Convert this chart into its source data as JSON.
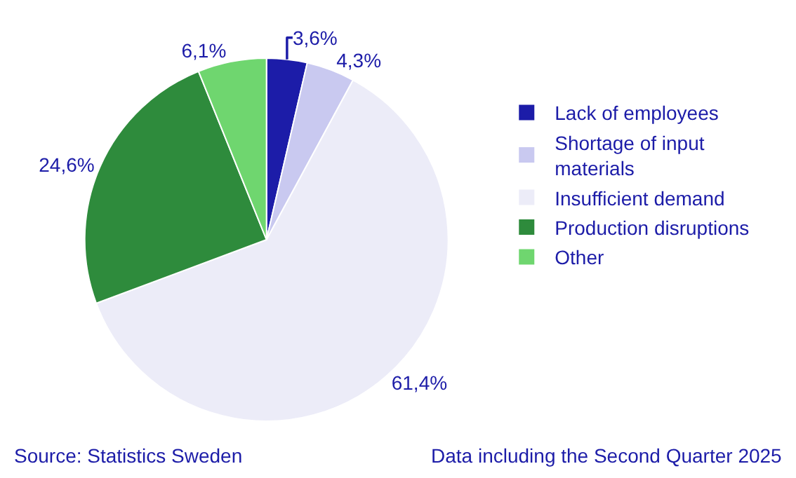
{
  "chart_data": {
    "type": "pie",
    "categories": [
      "Lack of employees",
      "Shortage of input materials",
      "Insufficient demand",
      "Production disruptions",
      "Other"
    ],
    "values": [
      3.6,
      4.3,
      61.4,
      24.6,
      6.1
    ],
    "value_labels": [
      "3,6%",
      "4,3%",
      "61,4%",
      "24,6%",
      "6,1%"
    ],
    "colors": [
      "#1c1ca8",
      "#c9c9f0",
      "#ececf8",
      "#2e8b3c",
      "#6fd66f"
    ],
    "legend": "right",
    "annotations": [
      "Source: Statistics Sweden",
      "Data including the Second Quarter 2025"
    ]
  }
}
